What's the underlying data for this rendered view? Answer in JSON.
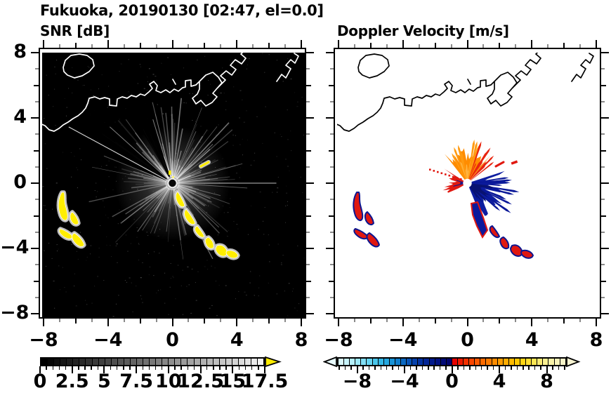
{
  "figure": {
    "title": "Fukuoka, 20190130 [02:47, el=0.0]",
    "background": "#ffffff",
    "text_color": "#000000"
  },
  "panels": [
    {
      "id": "snr",
      "subtitle": "SNR [dB]",
      "plot_bg": "#000000",
      "coast_color": "#ffffff",
      "beam_color": "#ffffff",
      "clutter_color": "#ffee00",
      "clutter_halo": "#c8c8c8"
    },
    {
      "id": "velocity",
      "subtitle": "Doppler Velocity [m/s]",
      "plot_bg": "#ffffff",
      "coast_color": "#000000",
      "positive_color": "#ff8c00",
      "positive_light": "#ffb23e",
      "negative_color": "#0d1da0",
      "negative_dark": "#081272",
      "clutter_color": "#e01810",
      "clutter_edge": "#0c1690"
    }
  ],
  "axes": {
    "x_major": [
      -8,
      -4,
      0,
      4,
      8
    ],
    "x_major_labels": [
      "−8",
      "−4",
      "0",
      "4",
      "8"
    ],
    "y_major": [
      8,
      4,
      0,
      -4,
      -8
    ],
    "y_major_labels": [
      "8",
      "4",
      "0",
      "−4",
      "−8"
    ],
    "minor_step": 1,
    "range": [
      -8,
      8
    ]
  },
  "colorbars": {
    "snr": {
      "min": 0,
      "max": 17.5,
      "minor_step": 0.5,
      "major_ticks": [
        0,
        2.5,
        5,
        7.5,
        10,
        12.5,
        15,
        17.5
      ],
      "labels": [
        "0",
        "2.5",
        "5",
        "7.5",
        "10",
        "12.5",
        "15",
        "17.5"
      ],
      "segments": [
        "#000000",
        "#070707",
        "#0e0e0e",
        "#151515",
        "#1c1c1c",
        "#232323",
        "#2b2b2b",
        "#323232",
        "#393939",
        "#404040",
        "#474747",
        "#4e4e4e",
        "#555555",
        "#5c5c5c",
        "#636363",
        "#6a6a6a",
        "#717171",
        "#787878",
        "#808080",
        "#878787",
        "#8e8e8e",
        "#959595",
        "#9c9c9c",
        "#a3a3a3",
        "#aaaaaa",
        "#b1b1b1",
        "#b8b8b8",
        "#bfbfbf",
        "#c6c6c6",
        "#cecece",
        "#d5d5d5",
        "#dcdcdc",
        "#e3e3e3",
        "#eaeaea",
        "#f1f1f1"
      ],
      "over_arrow_color": "#ffec00"
    },
    "velocity": {
      "min": -10,
      "max": 10,
      "minor_step": 0.5,
      "major_ticks": [
        -8,
        -4,
        0,
        4,
        8
      ],
      "labels": [
        "−8",
        "−4",
        "0",
        "4",
        "8"
      ],
      "segments": [
        "#daf8fd",
        "#c8f4fc",
        "#b4effa",
        "#9ce8f8",
        "#82dff5",
        "#66d4f1",
        "#4ac7ec",
        "#33b8e7",
        "#24a7e0",
        "#1893d7",
        "#0f7ecd",
        "#0a68c2",
        "#0753b7",
        "#0541ac",
        "#0332a1",
        "#022596",
        "#021a8c",
        "#011181",
        "#010a77",
        "#01046d",
        "#e60000",
        "#ee1a00",
        "#f43000",
        "#f94500",
        "#fc5800",
        "#fe6a00",
        "#ff7b00",
        "#ff8c00",
        "#ff9c00",
        "#ffab00",
        "#ffba00",
        "#ffc800",
        "#ffd414",
        "#ffdf33",
        "#fee755",
        "#fcec75",
        "#faf092",
        "#f9f2a8",
        "#f8f3ba",
        "#f7f4c8"
      ],
      "under_arrow_color": "#e8fcff",
      "over_arrow_color": "#f7f4d2"
    }
  },
  "chart_data": [
    {
      "type": "heatmap",
      "title": "SNR [dB]",
      "suptitle": "Fukuoka, 20190130 [02:47, el=0.0]",
      "x_range": [
        -8,
        8
      ],
      "y_range": [
        -8,
        8
      ],
      "x_ticks": [
        -8,
        -4,
        0,
        4,
        8
      ],
      "y_ticks": [
        8,
        4,
        0,
        -4,
        -8
      ],
      "grid": false,
      "background": "black",
      "colorbar": {
        "min": 0,
        "max": 17.5,
        "tick_step": 2.5,
        "tick_labels": [
          "0",
          "2.5",
          "5",
          "7.5",
          "10",
          "12.5",
          "15",
          "17.5"
        ],
        "colormap": "black-to-white grayscale, discrete 0.5 dB steps",
        "over_color": "yellow"
      },
      "features": [
        {
          "name": "radar-origin",
          "x": 0,
          "y": 0
        },
        {
          "name": "radial-beam-fan",
          "desc": "faint gray lidar/radar beams radiating from origin, brightest toward N-NE and SE, with dark shadow sectors toward SW"
        },
        {
          "name": "coastline",
          "desc": "white Hakata Bay shoreline: offshore island near (-6.5,5.5..7.5), wavy coast entering west edge near y=3.5, harbor piers/reclaimed land toward NE reaching top edge near x=4.5"
        },
        {
          "name": "high-snr-clutter-chain",
          "desc": "yellow (>17.5 dB) echo chain from about (0.3,-0.5) to (4.2,-4.6) with hooked blobs at far end"
        },
        {
          "name": "high-snr-clutter-cluster",
          "desc": "yellow echo crescents clustered around x in [-7.1,-5.5], y in [-0.5,-4.0]"
        },
        {
          "name": "small-echo",
          "x": 2.0,
          "y": 1.1
        }
      ]
    },
    {
      "type": "heatmap",
      "title": "Doppler Velocity [m/s]",
      "x_range": [
        -8,
        8
      ],
      "y_range": [
        -8,
        8
      ],
      "x_ticks": [
        -8,
        -4,
        0,
        4,
        8
      ],
      "y_ticks": [
        8,
        4,
        0,
        -4,
        -8
      ],
      "grid": false,
      "background": "white",
      "colorbar": {
        "min": -10,
        "max": 10,
        "tick_step": 4,
        "tick_labels": [
          "−8",
          "−4",
          "0",
          "4",
          "8"
        ],
        "colormap": "pale-cyan→blue→navy for negative | red→orange→pale-yellow for positive, discrete 0.5 m/s steps",
        "under_color": "pale cyan",
        "over_color": "pale yellow"
      },
      "features": [
        {
          "name": "radar-origin",
          "x": 0,
          "y": 0,
          "desc": "small white hole at scan center"
        },
        {
          "name": "positive-velocity-lobe",
          "desc": "orange fan (≈ +2 to +7 m/s) extending north of origin with red spikes on its NE flank"
        },
        {
          "name": "negative-velocity-lobe",
          "desc": "dark navy-blue fan (≈ −2 to −9 m/s) extending east to southeast of origin, streak continuing south"
        },
        {
          "name": "mixed-red-patch",
          "desc": "red (positive) returns immediately southwest of origin with navy flecks"
        },
        {
          "name": "clutter-echoes",
          "desc": "red blobs edged in navy matching the SNR clutter: cluster near (-6.5,-2) and chain toward (4,-4.5); small red dash at (2.0,1.1)"
        }
      ]
    }
  ]
}
